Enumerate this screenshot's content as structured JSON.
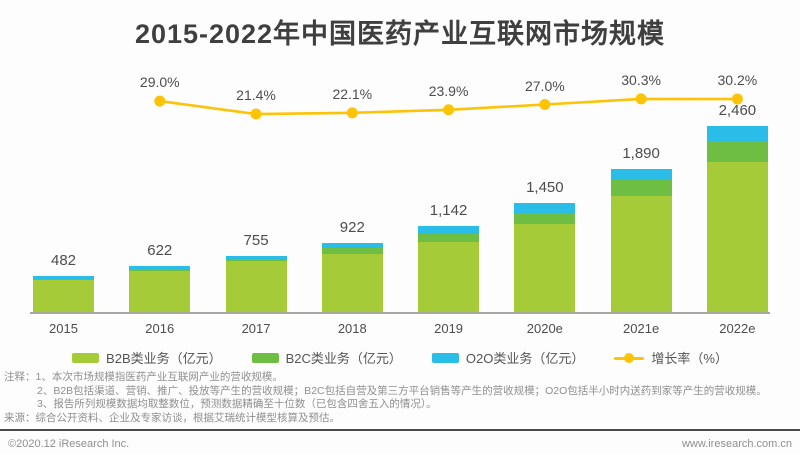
{
  "title": "2015-2022年中国医药产业互联网市场规模",
  "chart_data": {
    "type": "bar",
    "subtype": "stacked-bars-with-growth-line",
    "title": "2015-2022年中国医药产业互联网市场规模",
    "categories": [
      "2015",
      "2016",
      "2017",
      "2018",
      "2019",
      "2020e",
      "2021e",
      "2022e"
    ],
    "series": [
      {
        "name": "B2B类业务（亿元）",
        "color": "#a5cc38",
        "values": [
          434,
          552,
          690,
          772,
          932,
          1175,
          1535,
          1985
        ]
      },
      {
        "name": "B2C类业务（亿元）",
        "color": "#6fbe44",
        "values": [
          13,
          20,
          25,
          90,
          105,
          145,
          210,
          275
        ]
      },
      {
        "name": "O2O类业务（亿元）",
        "color": "#2abde8",
        "values": [
          35,
          50,
          40,
          60,
          105,
          130,
          145,
          200
        ]
      }
    ],
    "totals": {
      "values": [
        482,
        622,
        755,
        922,
        1142,
        1450,
        1890,
        2460
      ],
      "labels": [
        "482",
        "622",
        "755",
        "922",
        "1,142",
        "1,450",
        "1,890",
        "2,460"
      ]
    },
    "growth_line": {
      "name": "增长率（%）",
      "color": "#fdc306",
      "start_category_index": 1,
      "values": [
        29.0,
        21.4,
        22.1,
        23.9,
        27.0,
        30.3,
        30.2
      ],
      "labels": [
        "29.0%",
        "21.4%",
        "22.1%",
        "23.9%",
        "27.0%",
        "30.3%",
        "30.2%"
      ]
    },
    "ylim": [
      0,
      2600
    ],
    "grid": false,
    "legend_position": "bottom"
  },
  "legend": {
    "items": [
      {
        "label": "B2B类业务（亿元）",
        "color": "#a5cc38",
        "marker": "swatch"
      },
      {
        "label": "B2C类业务（亿元）",
        "color": "#6fbe44",
        "marker": "swatch"
      },
      {
        "label": "O2O类业务（亿元）",
        "color": "#2abde8",
        "marker": "swatch"
      },
      {
        "label": "增长率（%）",
        "color": "#fdc306",
        "marker": "line-dot"
      }
    ]
  },
  "notes": {
    "line1": "注释：1、本次市场规模指医药产业互联网产业的营收规模。",
    "line2": "2、B2B包括渠道、营销、推广、投放等产生的营收规模；B2C包括自营及第三方平台销售等产生的营收规模；O2O包括半小时内送药到家等产生的营收规模。",
    "line3": "3、报告所列规模数据均取整数位，预测数据精确至十位数（已包含四舍五入的情况）。",
    "source": "来源：综合公开资料、企业及专家访谈，根据艾瑞统计模型核算及预估。"
  },
  "footer": {
    "left": "©2020.12 iResearch Inc.",
    "right": "www.iresearch.com.cn"
  }
}
